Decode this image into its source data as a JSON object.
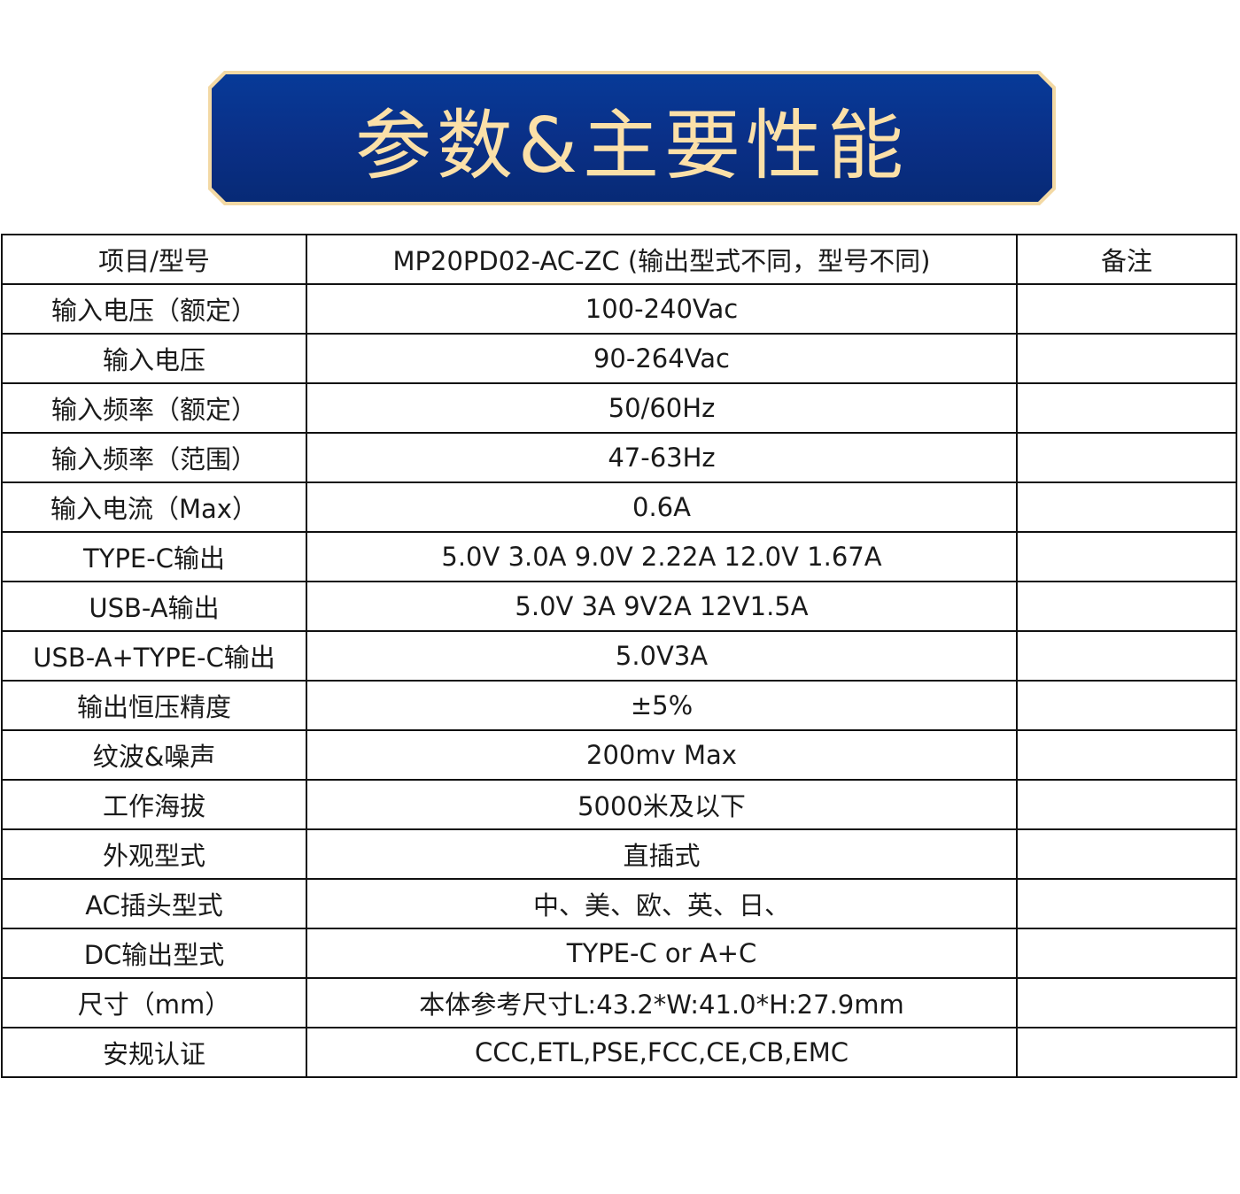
{
  "banner": {
    "title": "参数&主要性能",
    "colors": {
      "background": "#0a2f86",
      "text": "#fbe0a8",
      "border": "#f3d9a4"
    }
  },
  "table": {
    "header": [
      "项目/型号",
      "MP20PD02-AC-ZC (输出型式不同，型号不同)",
      "备注"
    ],
    "rows": [
      [
        "输入电压（额定）",
        "100-240Vac",
        ""
      ],
      [
        "输入电压",
        "90-264Vac",
        ""
      ],
      [
        "输入频率（额定）",
        "50/60Hz",
        ""
      ],
      [
        "输入频率（范围）",
        "47-63Hz",
        ""
      ],
      [
        "输入电流（Max）",
        "0.6A",
        ""
      ],
      [
        "TYPE-C输出",
        "5.0V 3.0A  9.0V 2.22A 12.0V 1.67A",
        ""
      ],
      [
        "USB-A输出",
        "5.0V 3A  9V2A  12V1.5A",
        ""
      ],
      [
        "USB-A+TYPE-C输出",
        "5.0V3A",
        ""
      ],
      [
        "输出恒压精度",
        "±5%",
        ""
      ],
      [
        "纹波&噪声",
        "200mv Max",
        ""
      ],
      [
        "工作海拔",
        "5000米及以下",
        ""
      ],
      [
        "外观型式",
        "直插式",
        ""
      ],
      [
        "AC插头型式",
        "中、美、欧、英、日、",
        ""
      ],
      [
        "DC输出型式",
        "TYPE-C or A+C",
        ""
      ],
      [
        "尺寸（mm）",
        "本体参考尺寸L:43.2*W:41.0*H:27.9mm",
        ""
      ],
      [
        "安规认证",
        "CCC,ETL,PSE,FCC,CE,CB,EMC",
        ""
      ]
    ]
  }
}
